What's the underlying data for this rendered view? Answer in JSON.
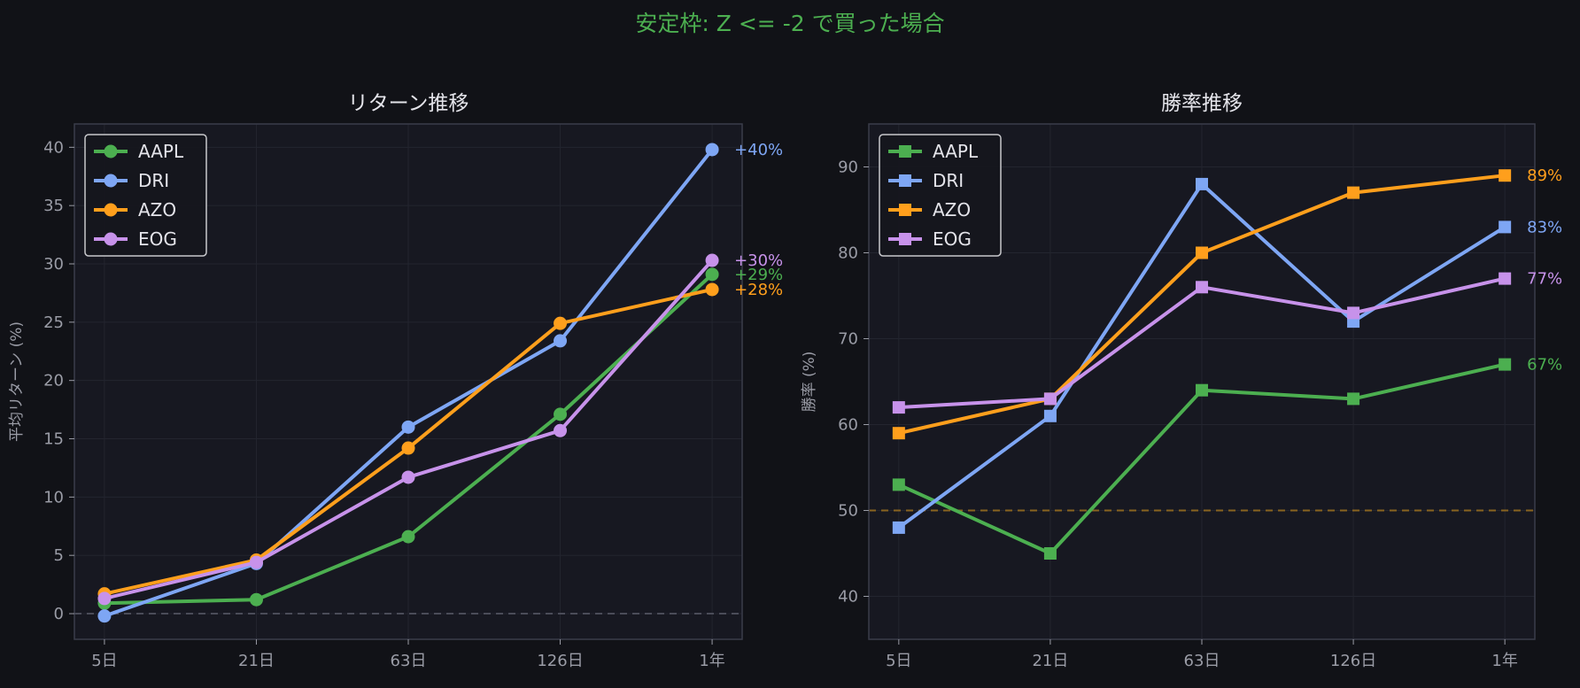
{
  "suptitle": "安定枠: Z <= -2 で買った場合",
  "colors": {
    "background": "#111217",
    "panel": "#171821",
    "axis_frame": "#3a3c4a",
    "grid": "#23252f",
    "tick_text": "#9a9ca6",
    "title_text": "#e4e4ea",
    "suptitle": "#4caf50",
    "zero_line": "#4a4c58",
    "half_line": "#8a6420",
    "AAPL": "#4caf50",
    "DRI": "#7ea6f4",
    "AZO": "#ff9f1c",
    "EOG": "#c792ea"
  },
  "chart_data": [
    {
      "type": "line",
      "title": "リターン推移",
      "xlabel": "",
      "ylabel": "平均リターン (%)",
      "categories": [
        "5日",
        "21日",
        "63日",
        "126日",
        "1年"
      ],
      "ylim": [
        -2.2,
        42
      ],
      "yticks": [
        0,
        5,
        10,
        15,
        20,
        25,
        30,
        35,
        40
      ],
      "marker": "circle",
      "reference_line": 0,
      "legend": "top-left",
      "grid": true,
      "series": [
        {
          "name": "AAPL",
          "values": [
            0.9,
            1.2,
            6.6,
            17.1,
            29.1
          ],
          "end_label": "+29%"
        },
        {
          "name": "DRI",
          "values": [
            -0.2,
            4.3,
            16.0,
            23.4,
            39.8
          ],
          "end_label": "+40%"
        },
        {
          "name": "AZO",
          "values": [
            1.7,
            4.6,
            14.2,
            24.9,
            27.8
          ],
          "end_label": "+28%"
        },
        {
          "name": "EOG",
          "values": [
            1.3,
            4.4,
            11.7,
            15.7,
            30.3
          ],
          "end_label": "+30%"
        }
      ]
    },
    {
      "type": "line",
      "title": "勝率推移",
      "xlabel": "",
      "ylabel": "勝率 (%)",
      "categories": [
        "5日",
        "21日",
        "63日",
        "126日",
        "1年"
      ],
      "ylim": [
        35,
        95
      ],
      "yticks": [
        40,
        50,
        60,
        70,
        80,
        90
      ],
      "marker": "square",
      "reference_line": 50,
      "legend": "top-left",
      "grid": true,
      "series": [
        {
          "name": "AAPL",
          "values": [
            53,
            45,
            64,
            63,
            67
          ],
          "end_label": "67%"
        },
        {
          "name": "DRI",
          "values": [
            48,
            61,
            88,
            72,
            83
          ],
          "end_label": "83%"
        },
        {
          "name": "AZO",
          "values": [
            59,
            63,
            80,
            87,
            89
          ],
          "end_label": "89%"
        },
        {
          "name": "EOG",
          "values": [
            62,
            63,
            76,
            73,
            77
          ],
          "end_label": "77%"
        }
      ]
    }
  ]
}
